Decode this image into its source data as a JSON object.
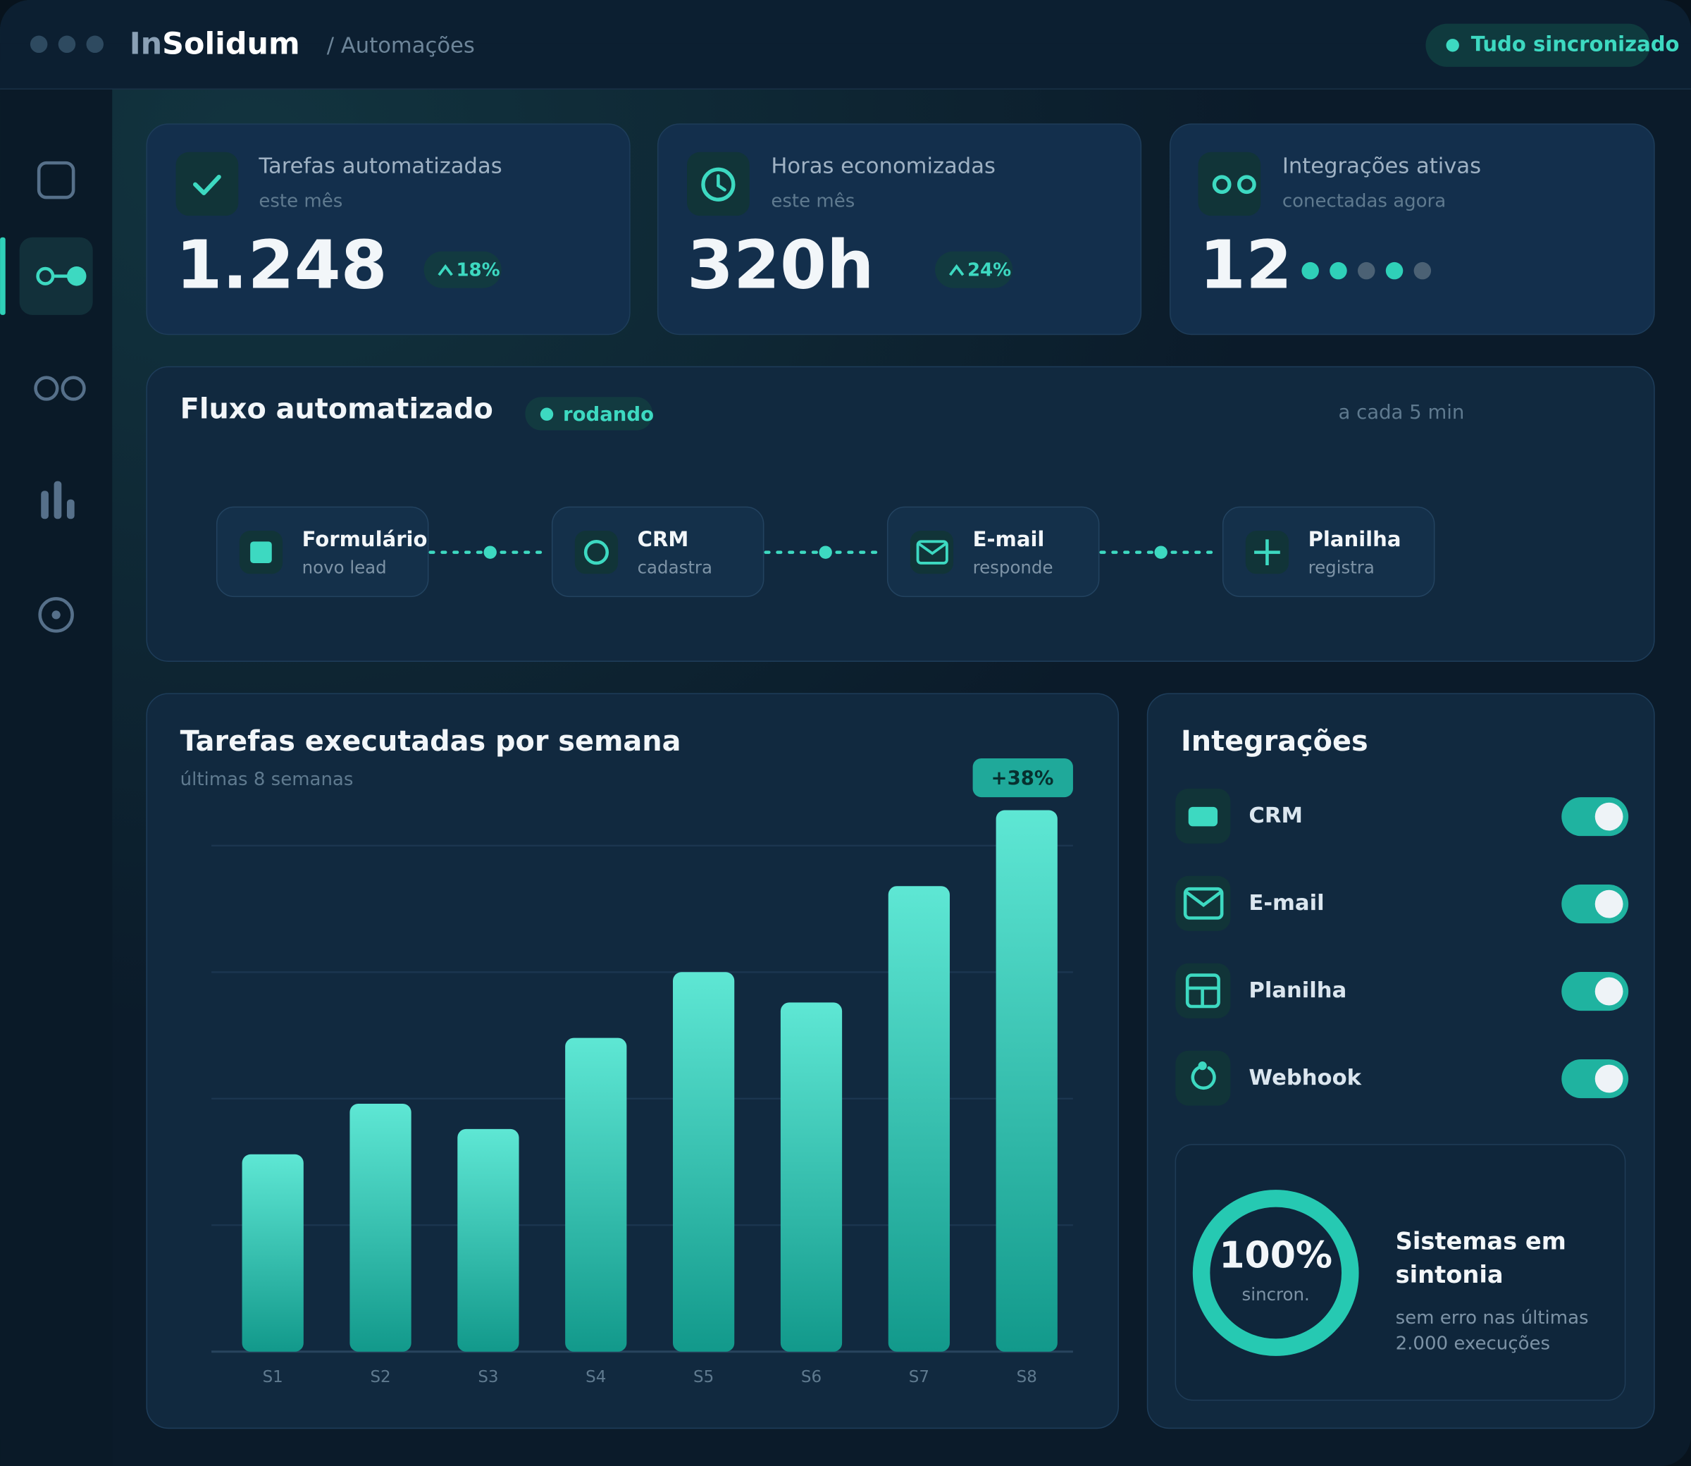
{
  "header": {
    "brand_prefix": "In",
    "brand": "Solidum",
    "breadcrumb": "/ Automações",
    "status": "Tudo sincronizado"
  },
  "stats": [
    {
      "title": "Tarefas automatizadas",
      "subtitle": "este mês",
      "value": "1.248",
      "delta": "18%"
    },
    {
      "title": "Horas economizadas",
      "subtitle": "este mês",
      "value": "320h",
      "delta": "24%"
    },
    {
      "title": "Integrações ativas",
      "subtitle": "conectadas agora",
      "value": "12"
    }
  ],
  "flow": {
    "title": "Fluxo automatizado",
    "status": "rodando",
    "schedule": "a cada 5 min",
    "steps": [
      {
        "label": "Formulário",
        "sub": "novo lead"
      },
      {
        "label": "CRM",
        "sub": "cadastra"
      },
      {
        "label": "E-mail",
        "sub": "responde"
      },
      {
        "label": "Planilha",
        "sub": "registra"
      }
    ]
  },
  "chart_data": {
    "type": "bar",
    "title": "Tarefas executadas por semana",
    "subtitle": "últimas 8 semanas",
    "badge": "+38%",
    "categories": [
      "S1",
      "S2",
      "S3",
      "S4",
      "S5",
      "S6",
      "S7",
      "S8"
    ],
    "values": [
      39,
      49,
      44,
      62,
      75,
      69,
      92,
      107
    ],
    "ylim": [
      0,
      110
    ],
    "yticks": [
      0,
      25,
      50,
      75,
      100
    ],
    "grid": true
  },
  "integrations": {
    "title": "Integrações",
    "items": [
      {
        "name": "CRM",
        "on": true
      },
      {
        "name": "E-mail",
        "on": true
      },
      {
        "name": "Planilha",
        "on": true
      },
      {
        "name": "Webhook",
        "on": true
      }
    ],
    "sync": {
      "value": 100,
      "label": "100%",
      "caption": "sincron.",
      "title": "Sistemas em sintonia",
      "note": "sem erro nas últimas 2.000 execuções"
    }
  }
}
